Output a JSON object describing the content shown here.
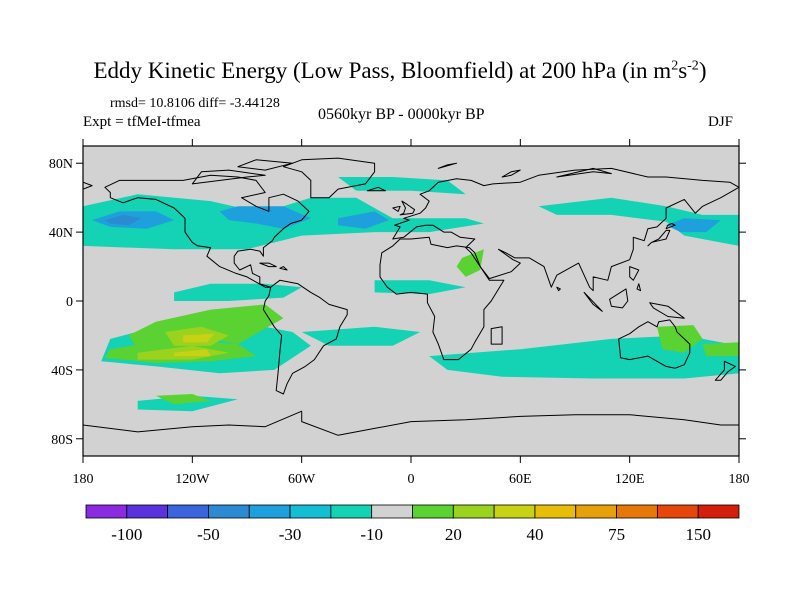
{
  "title": {
    "main": "Eddy Kinetic Energy (Low Pass, Bloomfield) at 200 hPa (in m",
    "sup1": "2",
    "mid": "s",
    "sup2": "-2",
    "end": ")"
  },
  "stats": "rmsd= 10.8106 diff= -3.44128",
  "experiment": "Expt = tfMeI-tfmea",
  "period": "0560kyr BP - 0000kyr BP",
  "season": "DJF",
  "map": {
    "projection": "cylindrical-equidistant",
    "lon_range": [
      -180,
      180
    ],
    "lat_range": [
      -90,
      90
    ],
    "ocean_color": "#d2d2d2",
    "lat_ticks": [
      {
        "value": 80,
        "label": "80N"
      },
      {
        "value": 40,
        "label": "40N"
      },
      {
        "value": 0,
        "label": "0"
      },
      {
        "value": -40,
        "label": "40S"
      },
      {
        "value": -80,
        "label": "80S"
      }
    ],
    "lon_ticks": [
      {
        "value": -180,
        "label": "180"
      },
      {
        "value": -120,
        "label": "120W"
      },
      {
        "value": -60,
        "label": "60W"
      },
      {
        "value": 0,
        "label": "0"
      },
      {
        "value": 60,
        "label": "60E"
      },
      {
        "value": 120,
        "label": "120E"
      },
      {
        "value": 180,
        "label": "180"
      }
    ]
  },
  "colorbar": {
    "colors": [
      "#8a2be2",
      "#5a32dc",
      "#3c64dc",
      "#2a8ad2",
      "#1ea0dc",
      "#14bed2",
      "#14d2b4",
      "#d2d2d2",
      "#5ad232",
      "#9ad21e",
      "#c8d214",
      "#e6be0a",
      "#e6a00a",
      "#e6780a",
      "#e6460a",
      "#d21e0a"
    ],
    "labels": [
      {
        "after": 1,
        "text": "-100"
      },
      {
        "after": 3,
        "text": "-50"
      },
      {
        "after": 5,
        "text": "-30"
      },
      {
        "after": 7,
        "text": "-10"
      },
      {
        "after": 9,
        "text": "20"
      },
      {
        "after": 11,
        "text": "40"
      },
      {
        "after": 13,
        "text": "75"
      },
      {
        "after": 15,
        "text": "150"
      }
    ]
  },
  "anomalies": [
    {
      "level": "-10",
      "color": "#14d2b4",
      "regions": [
        [
          -180,
          55,
          -150,
          62,
          -110,
          58,
          -85,
          52,
          -70,
          55,
          -55,
          60,
          -30,
          60,
          -10,
          48,
          10,
          48,
          30,
          48,
          40,
          45,
          10,
          40,
          -20,
          40,
          -60,
          38,
          -90,
          30,
          -130,
          30,
          -180,
          32
        ],
        [
          -40,
          72,
          -10,
          72,
          20,
          70,
          30,
          62,
          0,
          64,
          -30,
          64
        ],
        [
          70,
          55,
          110,
          60,
          140,
          55,
          160,
          50,
          180,
          50,
          180,
          32,
          150,
          38,
          140,
          46,
          110,
          50,
          80,
          50
        ],
        [
          -130,
          5,
          -110,
          10,
          -80,
          10,
          -60,
          8,
          -70,
          2,
          -100,
          0,
          -130,
          0
        ],
        [
          -20,
          12,
          10,
          12,
          30,
          8,
          10,
          4,
          -20,
          5
        ],
        [
          -165,
          -22,
          -140,
          -15,
          -95,
          -12,
          -65,
          -18,
          -55,
          -26,
          -75,
          -40,
          -105,
          -42,
          -140,
          -38,
          -170,
          -35
        ],
        [
          -60,
          -18,
          -20,
          -15,
          5,
          -18,
          -10,
          -26,
          -45,
          -26
        ],
        [
          10,
          -32,
          60,
          -28,
          110,
          -22,
          150,
          -20,
          180,
          -26,
          180,
          -42,
          150,
          -45,
          100,
          -45,
          50,
          -44,
          20,
          -40
        ],
        [
          -150,
          -58,
          -120,
          -55,
          -95,
          -57,
          -120,
          -64,
          -150,
          -63
        ]
      ]
    },
    {
      "level": "-20",
      "color": "#1ea0dc",
      "regions": [
        [
          -175,
          47,
          -160,
          52,
          -140,
          52,
          -130,
          47,
          -145,
          42,
          -165,
          43
        ],
        [
          -105,
          52,
          -95,
          55,
          -70,
          55,
          -55,
          48,
          -70,
          42,
          -85,
          45,
          -100,
          47
        ],
        [
          -40,
          48,
          -20,
          52,
          -12,
          47,
          -25,
          42,
          -40,
          44
        ],
        [
          140,
          44,
          150,
          48,
          170,
          47,
          162,
          40,
          148,
          40
        ]
      ]
    },
    {
      "level": "-30",
      "color": "#2a8ad2",
      "regions": [
        [
          -168,
          47,
          -158,
          50,
          -148,
          48,
          -155,
          44,
          -165,
          45
        ]
      ]
    },
    {
      "level": "20",
      "color": "#5ad232",
      "regions": [
        [
          -140,
          -12,
          -110,
          -5,
          -80,
          -2,
          -70,
          -10,
          -95,
          -25,
          -110,
          -22,
          -125,
          -30,
          -150,
          -28,
          -155,
          -20
        ],
        [
          -165,
          -28,
          -130,
          -22,
          -95,
          -25,
          -85,
          -32,
          -110,
          -35,
          -140,
          -36,
          -168,
          -33
        ],
        [
          -140,
          -55,
          -120,
          -54,
          -110,
          -58,
          -130,
          -60
        ],
        [
          28,
          25,
          40,
          30,
          38,
          18,
          30,
          14,
          25,
          20
        ],
        [
          135,
          -15,
          155,
          -14,
          160,
          -22,
          150,
          -30,
          138,
          -28
        ],
        [
          160,
          -25,
          180,
          -24,
          180,
          -32,
          162,
          -32
        ]
      ]
    },
    {
      "level": "30",
      "color": "#9ad21e",
      "regions": [
        [
          -135,
          -18,
          -115,
          -15,
          -100,
          -20,
          -110,
          -26,
          -130,
          -26
        ],
        [
          -150,
          -30,
          -120,
          -26,
          -100,
          -30,
          -120,
          -34,
          -150,
          -34
        ]
      ]
    },
    {
      "level": "40",
      "color": "#c8d214",
      "regions": [
        [
          -125,
          -20,
          -108,
          -19,
          -112,
          -24,
          -125,
          -24
        ],
        [
          -130,
          -30,
          -112,
          -28,
          -110,
          -32,
          -130,
          -32
        ]
      ]
    }
  ],
  "land": [
    [
      -168,
      66,
      -160,
      70,
      -140,
      70,
      -125,
      70,
      -110,
      73,
      -95,
      72,
      -85,
      70,
      -80,
      63,
      -93,
      60,
      -85,
      55,
      -78,
      52,
      -78,
      60,
      -70,
      62,
      -62,
      58,
      -56,
      52,
      -60,
      47,
      -66,
      45,
      -70,
      42,
      -75,
      37,
      -76,
      35,
      -81,
      31,
      -81,
      26,
      -83,
      29,
      -88,
      30,
      -95,
      29,
      -97,
      26,
      -97,
      22,
      -94,
      18,
      -88,
      21,
      -87,
      16,
      -83,
      14,
      -83,
      10,
      -77,
      8,
      -80,
      8,
      -85,
      11,
      -90,
      14,
      -96,
      16,
      -105,
      20,
      -112,
      26,
      -110,
      31,
      -117,
      32,
      -120,
      34,
      -124,
      40,
      -124,
      48,
      -130,
      54,
      -140,
      59,
      -150,
      60,
      -158,
      57,
      -165,
      60,
      -165,
      63
    ],
    [
      -77,
      8,
      -72,
      12,
      -62,
      10,
      -55,
      5,
      -50,
      2,
      -45,
      -2,
      -35,
      -5,
      -35,
      -8,
      -39,
      -15,
      -41,
      -22,
      -48,
      -26,
      -53,
      -34,
      -58,
      -38,
      -65,
      -42,
      -68,
      -48,
      -70,
      -54,
      -74,
      -52,
      -73,
      -42,
      -72,
      -30,
      -71,
      -20,
      -75,
      -15,
      -81,
      -5,
      -80,
      0,
      -78,
      3
    ],
    [
      -55,
      60,
      -45,
      60,
      -40,
      65,
      -25,
      68,
      -20,
      75,
      -20,
      80,
      -40,
      83,
      -60,
      82,
      -70,
      78,
      -60,
      75,
      -55,
      70
    ],
    [
      -10,
      36,
      -6,
      43,
      -9,
      44,
      -1,
      47,
      -4,
      48,
      5,
      51,
      8,
      54,
      10,
      58,
      5,
      62,
      10,
      64,
      15,
      69,
      25,
      71,
      33,
      70,
      40,
      67,
      45,
      68,
      60,
      69,
      70,
      73,
      90,
      76,
      110,
      77,
      130,
      72,
      140,
      72,
      160,
      70,
      175,
      69,
      180,
      66,
      170,
      60,
      160,
      55,
      156,
      51,
      150,
      59,
      140,
      54,
      140,
      48,
      135,
      43,
      130,
      42,
      128,
      35,
      122,
      37,
      122,
      30,
      120,
      24,
      110,
      20,
      108,
      12,
      100,
      14,
      100,
      6,
      98,
      8,
      92,
      22,
      80,
      15,
      77,
      8,
      73,
      20,
      65,
      25,
      57,
      25,
      52,
      28,
      48,
      30,
      56,
      24,
      60,
      22,
      55,
      17,
      43,
      13,
      38,
      20,
      33,
      28,
      30,
      31,
      35,
      36,
      27,
      37,
      22,
      40,
      18,
      40,
      12,
      44,
      8,
      44,
      3,
      43,
      -4,
      37
    ],
    [
      -17,
      21,
      -16,
      28,
      -10,
      32,
      -6,
      36,
      0,
      36,
      10,
      37,
      11,
      33,
      20,
      31,
      25,
      32,
      32,
      31,
      35,
      28,
      38,
      20,
      43,
      12,
      51,
      12,
      44,
      0,
      40,
      -5,
      40,
      -15,
      35,
      -24,
      33,
      -28,
      26,
      -34,
      18,
      -34,
      15,
      -25,
      12,
      -18,
      13,
      -9,
      9,
      -1,
      9,
      4,
      0,
      5,
      -8,
      4,
      -13,
      8,
      -17,
      14
    ],
    [
      114,
      -22,
      115,
      -33,
      120,
      -34,
      130,
      -32,
      135,
      -35,
      140,
      -38,
      145,
      -39,
      150,
      -37,
      153,
      -30,
      153,
      -25,
      146,
      -18,
      145,
      -15,
      142,
      -11,
      136,
      -12,
      135,
      -15,
      130,
      -12,
      125,
      -15,
      120,
      -19
    ],
    [
      -180,
      -72,
      -150,
      -76,
      -120,
      -73,
      -100,
      -72,
      -80,
      -73,
      -60,
      -64,
      -60,
      -70,
      -40,
      -78,
      -20,
      -74,
      0,
      -70,
      30,
      -69,
      60,
      -67,
      90,
      -66,
      120,
      -66,
      150,
      -69,
      170,
      -72,
      180,
      -72,
      180,
      -90,
      -180,
      -90
    ],
    [
      -6,
      50,
      1,
      51,
      2,
      53,
      -2,
      56,
      -5,
      58,
      -3,
      54,
      -4,
      51
    ],
    [
      44,
      -16,
      50,
      -15,
      50,
      -25,
      44,
      -25
    ],
    [
      95,
      5,
      105,
      -6,
      100,
      -2
    ],
    [
      109,
      1,
      118,
      7,
      119,
      0,
      116,
      -4,
      110,
      -3
    ],
    [
      131,
      -1,
      141,
      -3,
      150,
      -10,
      141,
      -9,
      133,
      -4
    ],
    [
      130,
      32,
      132,
      34,
      136,
      35,
      140,
      36,
      142,
      41,
      140,
      41,
      136,
      36,
      132,
      34
    ],
    [
      140,
      42,
      145,
      44,
      143,
      45,
      141,
      44
    ],
    [
      172,
      -35,
      178,
      -38,
      174,
      -41,
      170,
      -46,
      167,
      -46,
      172,
      -40
    ],
    [
      -83,
      22,
      -78,
      22,
      -74,
      20,
      -78,
      20
    ],
    [
      -72,
      19,
      -68,
      18,
      -70,
      20
    ],
    [
      -120,
      68,
      -90,
      72,
      -80,
      73,
      -100,
      76,
      -115,
      75
    ],
    [
      -80,
      76,
      -65,
      80,
      -85,
      82,
      -95,
      78
    ],
    [
      80,
      72,
      100,
      75,
      110,
      74,
      100,
      77
    ],
    [
      50,
      72,
      55,
      75,
      60,
      76,
      55,
      73
    ],
    [
      15,
      77,
      25,
      80,
      20,
      79
    ],
    [
      -24,
      64,
      -14,
      64,
      -18,
      66
    ],
    [
      -180,
      65,
      -175,
      67,
      -180,
      69
    ],
    [
      120,
      20,
      125,
      18,
      122,
      12,
      120,
      14
    ],
    [
      125,
      10,
      126,
      6,
      124,
      7
    ],
    [
      80,
      8,
      82,
      7,
      81,
      6
    ],
    [
      -7,
      52,
      -6,
      55,
      -10,
      54
    ]
  ]
}
